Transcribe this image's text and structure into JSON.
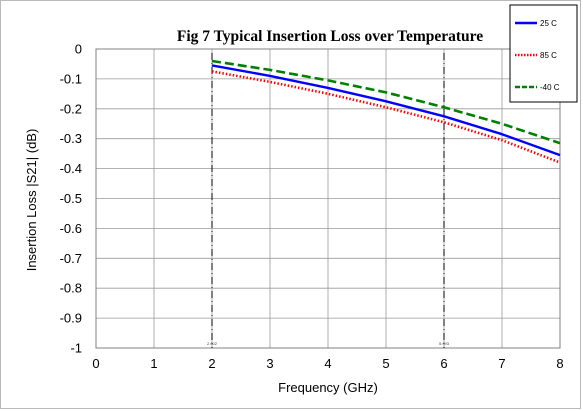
{
  "chart_data": {
    "type": "line",
    "title": "Fig 7 Typical Insertion Loss over Temperature",
    "xlabel": "Frequency (GHz)",
    "ylabel": "Insertion Loss |S21| (dB)",
    "xlim": [
      0,
      8
    ],
    "ylim": [
      -1,
      0
    ],
    "xticks": [
      0,
      1,
      2,
      3,
      4,
      5,
      6,
      7,
      8
    ],
    "yticks": [
      0,
      -0.1,
      -0.2,
      -0.3,
      -0.4,
      -0.5,
      -0.6,
      -0.7,
      -0.8,
      -0.9,
      -1
    ],
    "ytick_labels": [
      "0",
      "-0.1",
      "-0.2",
      "-0.3",
      "-0.4",
      "-0.5",
      "-0.6",
      "-0.7",
      "-0.8",
      "-0.9",
      "-1"
    ],
    "grid": true,
    "legend_position": "top-right",
    "series": [
      {
        "name": "25 C",
        "color": "#0000ff",
        "style": "solid",
        "x": [
          2,
          3,
          4,
          5,
          6,
          7,
          8
        ],
        "y": [
          -0.055,
          -0.09,
          -0.13,
          -0.175,
          -0.225,
          -0.285,
          -0.355
        ]
      },
      {
        "name": "85 C",
        "color": "#ff0000",
        "style": "dotted",
        "x": [
          2,
          3,
          4,
          5,
          6,
          7,
          8
        ],
        "y": [
          -0.075,
          -0.11,
          -0.15,
          -0.195,
          -0.245,
          -0.305,
          -0.38
        ]
      },
      {
        "name": "-40 C",
        "color": "#008000",
        "style": "dashed",
        "x": [
          2,
          3,
          4,
          5,
          6,
          7,
          8
        ],
        "y": [
          -0.04,
          -0.07,
          -0.105,
          -0.145,
          -0.195,
          -0.25,
          -0.315
        ]
      }
    ],
    "vertical_markers": [
      {
        "x": 2,
        "label": "2.002"
      },
      {
        "x": 6,
        "label": "5.993"
      }
    ]
  }
}
